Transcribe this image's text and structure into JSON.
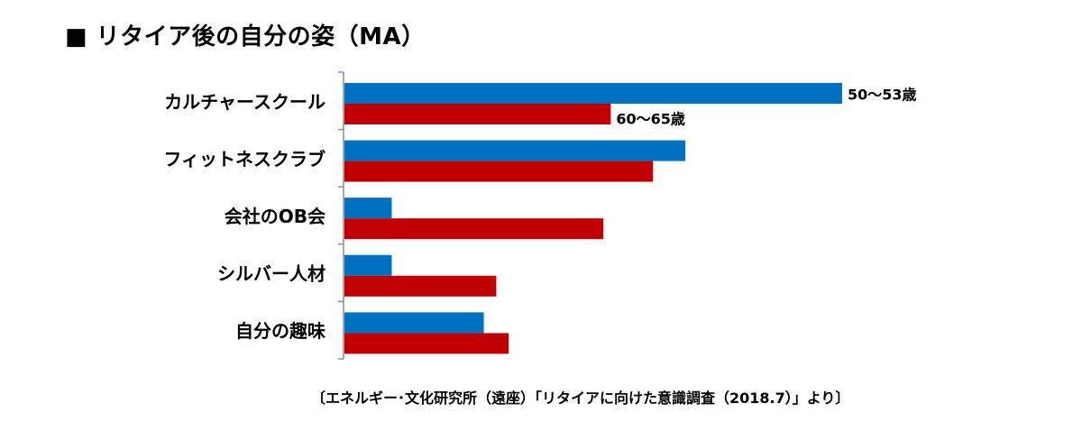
{
  "title": "■ リタイア後の自分の姿（MA）",
  "source": "〔エネルギー･文化研究所（遠座）「リタイアに向けた意識調査（2018.7）」より〕",
  "chart_data": {
    "type": "bar",
    "orientation": "horizontal",
    "title": "■ リタイア後の自分の姿（MA）",
    "categories": [
      "カルチャースクール",
      "フィットネスクラブ",
      "会社のOB会",
      "シルバー人材",
      "自分の趣味"
    ],
    "series": [
      {
        "name": "50～53歳",
        "color": "#0070C0",
        "values": [
          100,
          68.5,
          9.5,
          9.5,
          28
        ]
      },
      {
        "name": "60～65歳",
        "color": "#C00000",
        "values": [
          53.5,
          62,
          52,
          30.5,
          33
        ]
      }
    ],
    "xlim": [
      0,
      100
    ],
    "grid": false,
    "legend": "inline-labels-at-first-category"
  }
}
